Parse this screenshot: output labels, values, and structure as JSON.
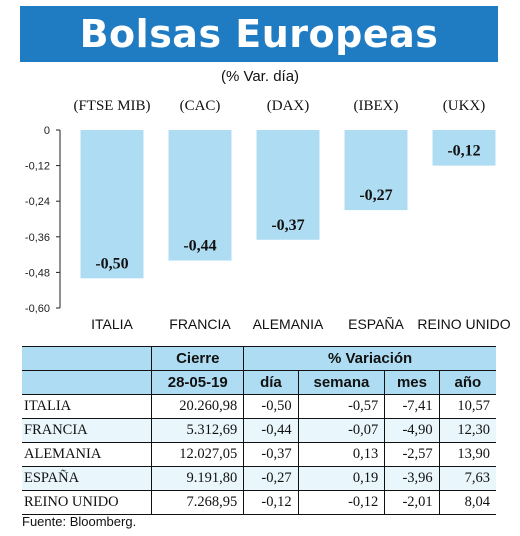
{
  "title": "Bolsas Europeas",
  "subtitle": "(% Var. día)",
  "chart_data": {
    "type": "bar",
    "title": "Bolsas Europeas",
    "subtitle": "(% Var. día)",
    "index_labels": [
      "(FTSE MIB)",
      "(CAC)",
      "(DAX)",
      "(IBEX)",
      "(UKX)"
    ],
    "categories": [
      "ITALIA",
      "FRANCIA",
      "ALEMANIA",
      "ESPAÑA",
      "REINO UNIDO"
    ],
    "values": [
      -0.5,
      -0.44,
      -0.37,
      -0.27,
      -0.12
    ],
    "value_labels": [
      "-0,50",
      "-0,44",
      "-0,37",
      "-0,27",
      "-0,12"
    ],
    "yticks": [
      0,
      -0.12,
      -0.24,
      -0.36,
      -0.48,
      -0.6
    ],
    "ytick_labels": [
      "0",
      "-0,12",
      "-0,24",
      "-0,36",
      "-0,48",
      "-0,60"
    ],
    "ylim": [
      -0.6,
      0
    ],
    "bar_color": "#aeddf3",
    "grid": false
  },
  "table": {
    "header_cierre": "Cierre",
    "header_variacion": "% Variación",
    "date": "28-05-19",
    "columns": [
      "día",
      "semana",
      "mes",
      "año"
    ],
    "rows": [
      {
        "country": "ITALIA",
        "cierre": "20.260,98",
        "dia": "-0,50",
        "semana": "-0,57",
        "mes": "-7,41",
        "anio": "10,57"
      },
      {
        "country": "FRANCIA",
        "cierre": "5.312,69",
        "dia": "-0,44",
        "semana": "-0,07",
        "mes": "-4,90",
        "anio": "12,30"
      },
      {
        "country": "ALEMANIA",
        "cierre": "12.027,05",
        "dia": "-0,37",
        "semana": "0,13",
        "mes": "-2,57",
        "anio": "13,90"
      },
      {
        "country": "ESPAÑA",
        "cierre": "9.191,80",
        "dia": "-0,27",
        "semana": "0,19",
        "mes": "-3,96",
        "anio": "7,63"
      },
      {
        "country": "REINO UNIDO",
        "cierre": "7.268,95",
        "dia": "-0,12",
        "semana": "-0,12",
        "mes": "-2,01",
        "anio": "8,04"
      }
    ]
  },
  "source": "Fuente: Bloomberg."
}
